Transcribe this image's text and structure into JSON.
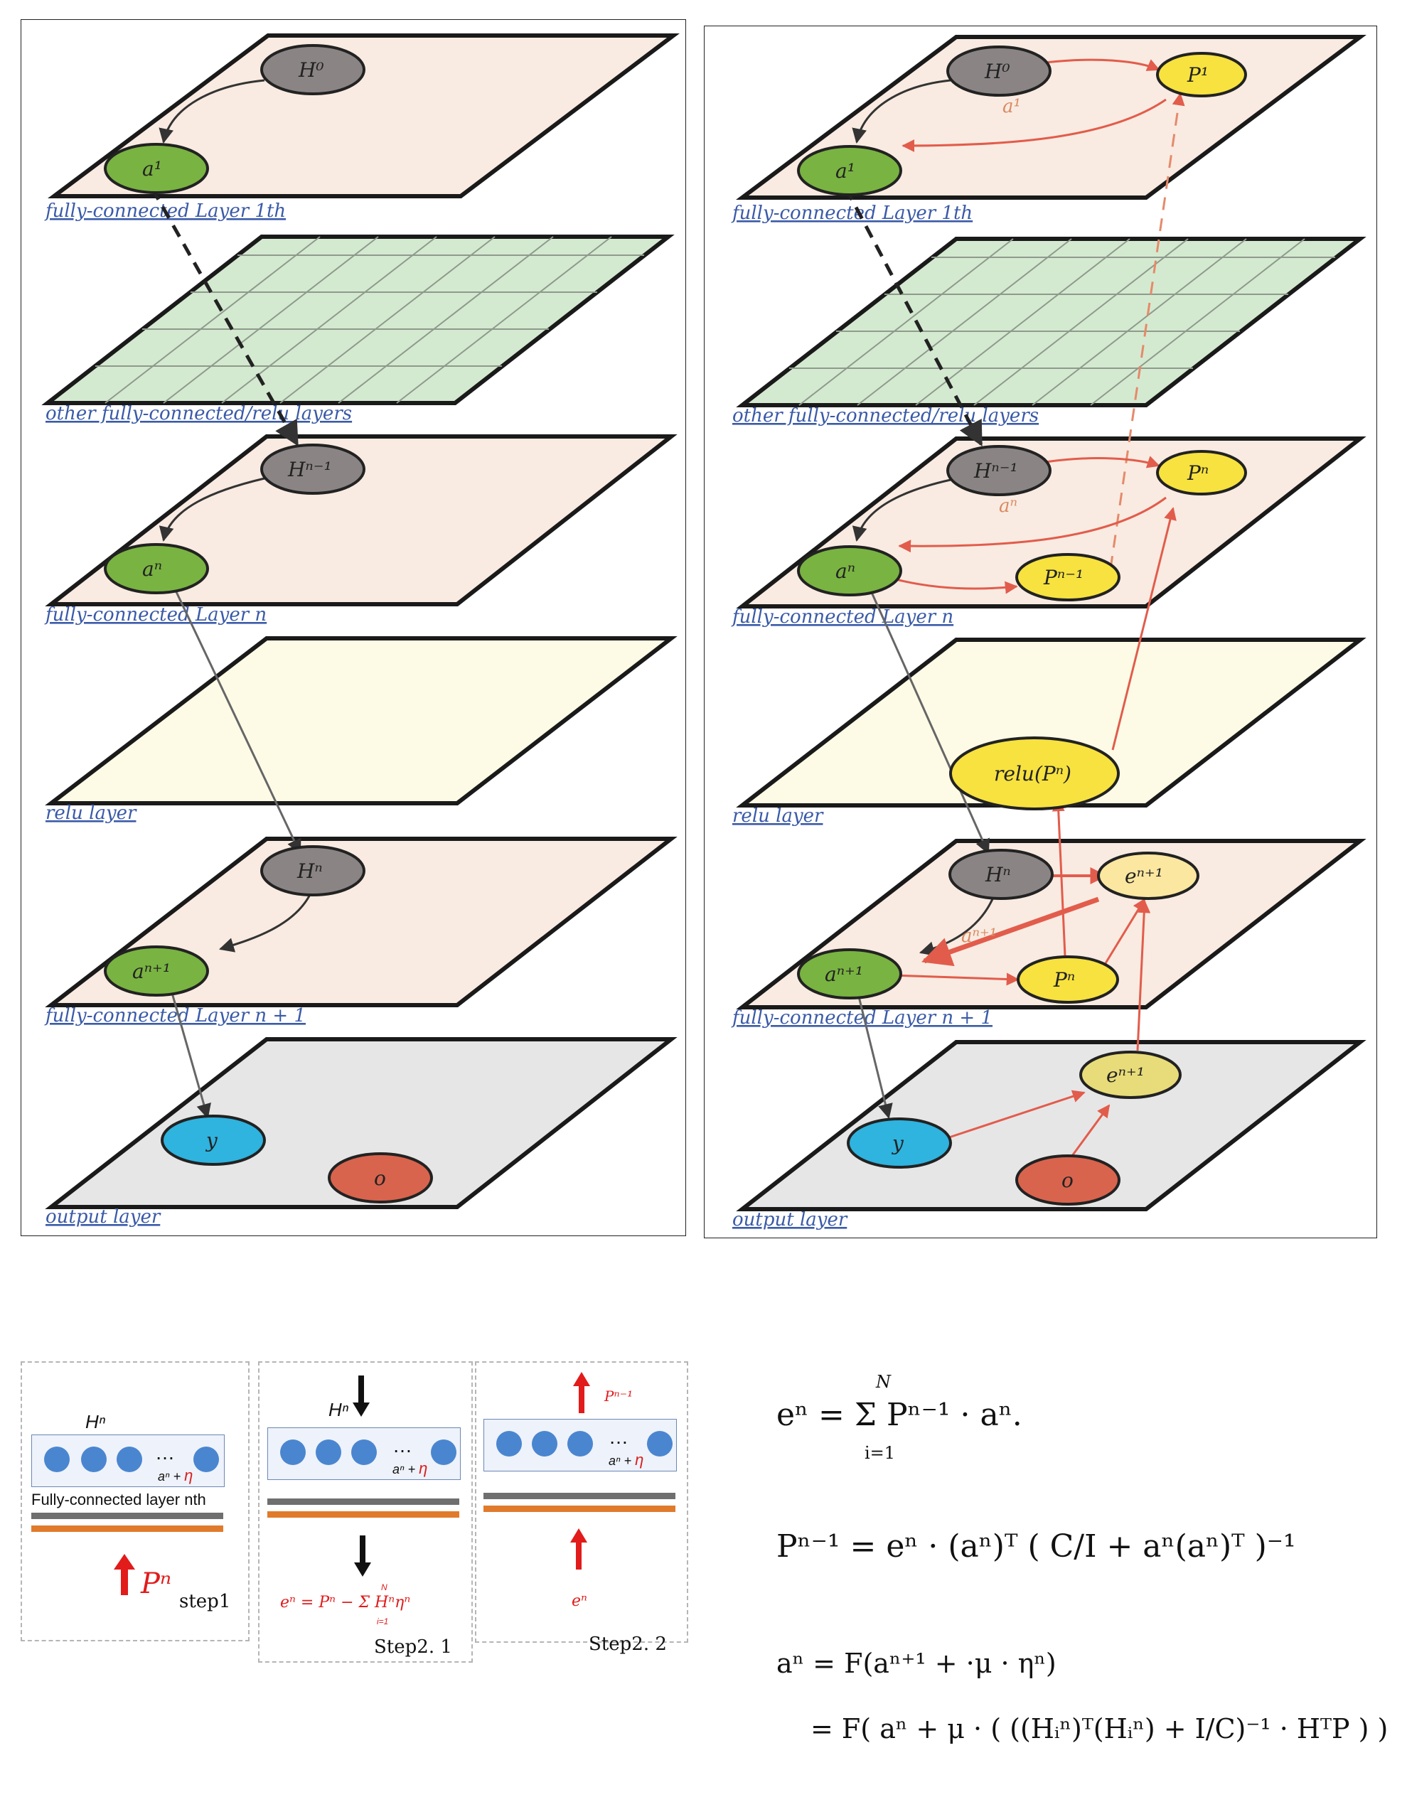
{
  "left_panel": {
    "layers": [
      {
        "label": "fully-connected Layer 1th",
        "nodes": [
          "H⁰",
          "a¹"
        ]
      },
      {
        "label": "other fully-connected/relu layers",
        "nodes": []
      },
      {
        "label": "fully-connected Layer n",
        "nodes": [
          "Hⁿ⁻¹",
          "aⁿ"
        ]
      },
      {
        "label": "relu layer",
        "nodes": []
      },
      {
        "label": "fully-connected Layer n + 1",
        "nodes": [
          "Hⁿ",
          "aⁿ⁺¹"
        ]
      },
      {
        "label": "output layer",
        "nodes": [
          "y",
          "o"
        ]
      }
    ]
  },
  "right_panel": {
    "layers": [
      {
        "label": "fully-connected Layer 1th",
        "nodes": [
          "H⁰",
          "P¹",
          "a¹"
        ],
        "edge_labels": [
          "a¹"
        ]
      },
      {
        "label": "other fully-connected/relu layers",
        "nodes": []
      },
      {
        "label": "fully-connected Layer n",
        "nodes": [
          "Hⁿ⁻¹",
          "Pⁿ",
          "aⁿ",
          "Pⁿ⁻¹"
        ],
        "edge_labels": [
          "aⁿ"
        ]
      },
      {
        "label": "relu layer",
        "nodes": [
          "relu(Pⁿ)"
        ]
      },
      {
        "label": "fully-connected Layer n + 1",
        "nodes": [
          "Hⁿ",
          "eⁿ⁺¹",
          "aⁿ⁺¹",
          "Pⁿ"
        ],
        "edge_labels": [
          "aⁿ⁺¹"
        ]
      },
      {
        "label": "output layer",
        "nodes": [
          "y",
          "eⁿ⁺¹",
          "o"
        ]
      }
    ]
  },
  "steps": {
    "step1": {
      "h_label": "Hⁿ",
      "dots_suffix": "…",
      "a_eta": "aⁿ + ",
      "eta": "η",
      "layer_caption": "Fully-connected layer nth",
      "p_label": "Pⁿ",
      "step_label": "step1"
    },
    "step21": {
      "h_label": "Hⁿ",
      "dots_suffix": "…",
      "a_eta": "aⁿ + ",
      "eta": "η",
      "formula": "eⁿ = Pⁿ − Σ Hⁿηⁿ",
      "sum_top": "N",
      "sum_bottom": "i=1",
      "step_label": "Step2. 1"
    },
    "step22": {
      "p_label": "Pⁿ⁻¹",
      "dots_suffix": "…",
      "a_eta": "aⁿ + ",
      "eta": "η",
      "e_label": "eⁿ",
      "step_label": "Step2. 2"
    }
  },
  "equations": {
    "eq1": "eⁿ = Σ Pⁿ⁻¹ · aⁿ.",
    "eq1_top": "N",
    "eq1_bottom": "i=1",
    "eq2": "Pⁿ⁻¹ = eⁿ · (aⁿ)ᵀ ( C/I + aⁿ(aⁿ)ᵀ )⁻¹",
    "eq3a": "aⁿ = F(aⁿ⁺¹ + ·μ · ηⁿ)",
    "eq3b": "= F( aⁿ + μ · ( ((Hᵢⁿ)ᵀ(Hᵢⁿ) + I/C)⁻¹ · HᵀP ) )"
  },
  "colors": {
    "fc_layer": "#f9ebe1",
    "grid_layer": "#d4ead0",
    "relu_layer": "#fdfbe6",
    "output_layer": "#e6e6e6",
    "gray_node": "#8a8584",
    "green_node": "#79b342",
    "yellow_node": "#f7e23f",
    "blue_node": "#2fb3df",
    "red_node": "#d8644e",
    "red_edge": "#e25c4c"
  }
}
